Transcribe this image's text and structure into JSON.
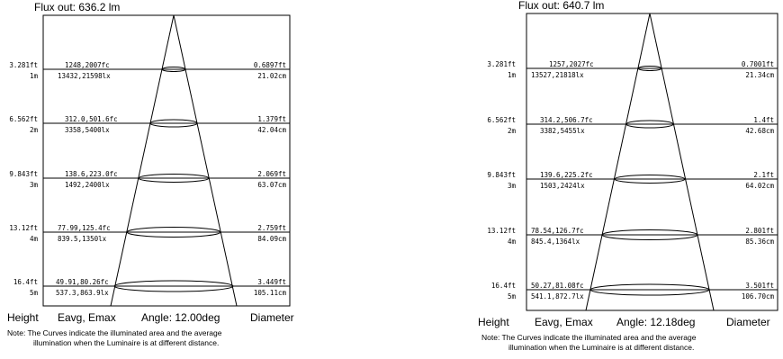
{
  "diagrams": [
    {
      "flux_label": "Flux out: 636.2 lm",
      "headers": {
        "height": "Height",
        "eavg": "Eavg, Emax",
        "angle": "Angle: 12.00deg",
        "diameter": "Diameter"
      },
      "note_line1": "Note: The Curves indicate the illuminated area and the average",
      "note_line2": "illumination when the Luminaire is at different distance.",
      "rows": [
        {
          "height_ft": "3.281ft",
          "height_m": "1m",
          "eavg_fc": "1248,2007fc",
          "eavg_lx": "13432,21598lx",
          "dia_ft": "0.6897ft",
          "dia_cm": "21.02cm"
        },
        {
          "height_ft": "6.562ft",
          "height_m": "2m",
          "eavg_fc": "312.0,501.6fc",
          "eavg_lx": "3358,5400lx",
          "dia_ft": "1.379ft",
          "dia_cm": "42.04cm"
        },
        {
          "height_ft": "9.843ft",
          "height_m": "3m",
          "eavg_fc": "138.6,223.0fc",
          "eavg_lx": "1492,2400lx",
          "dia_ft": "2.069ft",
          "dia_cm": "63.07cm"
        },
        {
          "height_ft": "13.12ft",
          "height_m": "4m",
          "eavg_fc": "77.99,125.4fc",
          "eavg_lx": "839.5,1350lx",
          "dia_ft": "2.759ft",
          "dia_cm": "84.09cm"
        },
        {
          "height_ft": "16.4ft",
          "height_m": "5m",
          "eavg_fc": "49.91,80.26fc",
          "eavg_lx": "537.3,863.9lx",
          "dia_ft": "3.449ft",
          "dia_cm": "105.11cm"
        }
      ]
    },
    {
      "flux_label": "Flux out: 640.7 lm",
      "headers": {
        "height": "Height",
        "eavg": "Eavg, Emax",
        "angle": "Angle: 12.18deg",
        "diameter": "Diameter"
      },
      "note_line1": "Note: The Curves indicate the illuminated area and the average",
      "note_line2": "illumination when the Luminaire is at different distance.",
      "rows": [
        {
          "height_ft": "3.281ft",
          "height_m": "1m",
          "eavg_fc": "1257,2027fc",
          "eavg_lx": "13527,21818lx",
          "dia_ft": "0.7001ft",
          "dia_cm": "21.34cm"
        },
        {
          "height_ft": "6.562ft",
          "height_m": "2m",
          "eavg_fc": "314.2,506.7fc",
          "eavg_lx": "3382,5455lx",
          "dia_ft": "1.4ft",
          "dia_cm": "42.68cm"
        },
        {
          "height_ft": "9.843ft",
          "height_m": "3m",
          "eavg_fc": "139.6,225.2fc",
          "eavg_lx": "1503,2424lx",
          "dia_ft": "2.1ft",
          "dia_cm": "64.02cm"
        },
        {
          "height_ft": "13.12ft",
          "height_m": "4m",
          "eavg_fc": "78.54,126.7fc",
          "eavg_lx": "845.4,1364lx",
          "dia_ft": "2.801ft",
          "dia_cm": "85.36cm"
        },
        {
          "height_ft": "16.4ft",
          "height_m": "5m",
          "eavg_fc": "50.27,81.08fc",
          "eavg_lx": "541.1,872.7lx",
          "dia_ft": "3.501ft",
          "dia_cm": "106.70cm"
        }
      ]
    }
  ]
}
